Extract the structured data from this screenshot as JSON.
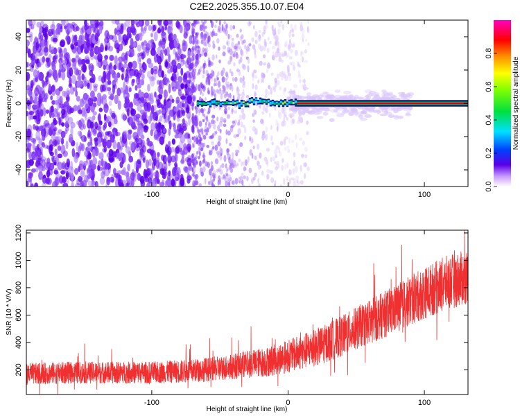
{
  "title": "C2E2.2025.355.10.07.E04",
  "colors": {
    "snr_line": "#f03030",
    "spectral_low": "#5a00e6",
    "spectral_high": "#e00000",
    "frame": "#000000"
  },
  "chart_data": [
    {
      "type": "heatmap",
      "title": "C2E2.2025.355.10.07.E04",
      "xlabel": "Height of straight line (km)",
      "ylabel": "Frequency (Hz)",
      "xlim": [
        -192,
        132
      ],
      "ylim": [
        -50,
        50
      ],
      "x_ticks": [
        -100,
        0,
        100
      ],
      "x_tick_labels": [
        "-100",
        "0",
        "100"
      ],
      "y_ticks": [
        -40,
        -20,
        0,
        20,
        40
      ],
      "y_tick_labels": [
        "-40",
        "-20",
        "0",
        "20",
        "40"
      ],
      "grid": false,
      "colorbar": {
        "label": "Normalized spectral amplitude",
        "range": [
          0,
          1
        ],
        "ticks": [
          0.0,
          0.2,
          0.4,
          0.6,
          0.8
        ],
        "tick_labels": [
          "0.0",
          "0.2",
          "0.4",
          "0.6",
          "0.8"
        ],
        "colormap": "rainbow (white, violet, blue, cyan, green, yellow, orange, red, magenta)"
      },
      "features": {
        "noise_dense_region_x": [
          -192,
          -70
        ],
        "noise_sparse_region_x": [
          -70,
          5
        ],
        "line_signal_frequency_hz": 0,
        "line_signal_x_start": -67,
        "line_signal_bright_from_x": 5,
        "band_x_range": [
          5,
          132
        ]
      }
    },
    {
      "type": "line",
      "xlabel": "Height of straight line (km)",
      "ylabel": "SNR (10 * V/V)",
      "xlim": [
        -192,
        132
      ],
      "ylim": [
        20,
        1220
      ],
      "x_ticks": [
        -100,
        0,
        100
      ],
      "x_tick_labels": [
        "-100",
        "0",
        "100"
      ],
      "y_ticks": [
        200,
        400,
        600,
        800,
        1000,
        1200
      ],
      "y_tick_labels": [
        "200",
        "400",
        "600",
        "800",
        "1000",
        "1200"
      ],
      "grid": false,
      "series": [
        {
          "color": "#f03030",
          "x": [
            -192,
            -175,
            -150,
            -125,
            -100,
            -75,
            -50,
            -30,
            -15,
            0,
            10,
            25,
            40,
            55,
            70,
            85,
            100,
            115,
            132
          ],
          "y_center": [
            170,
            175,
            180,
            180,
            180,
            190,
            210,
            240,
            260,
            300,
            330,
            380,
            450,
            530,
            600,
            680,
            760,
            830,
            880
          ],
          "y_spread": [
            80,
            80,
            80,
            80,
            80,
            85,
            90,
            100,
            110,
            120,
            130,
            140,
            150,
            160,
            170,
            180,
            190,
            200,
            200
          ]
        }
      ]
    }
  ]
}
